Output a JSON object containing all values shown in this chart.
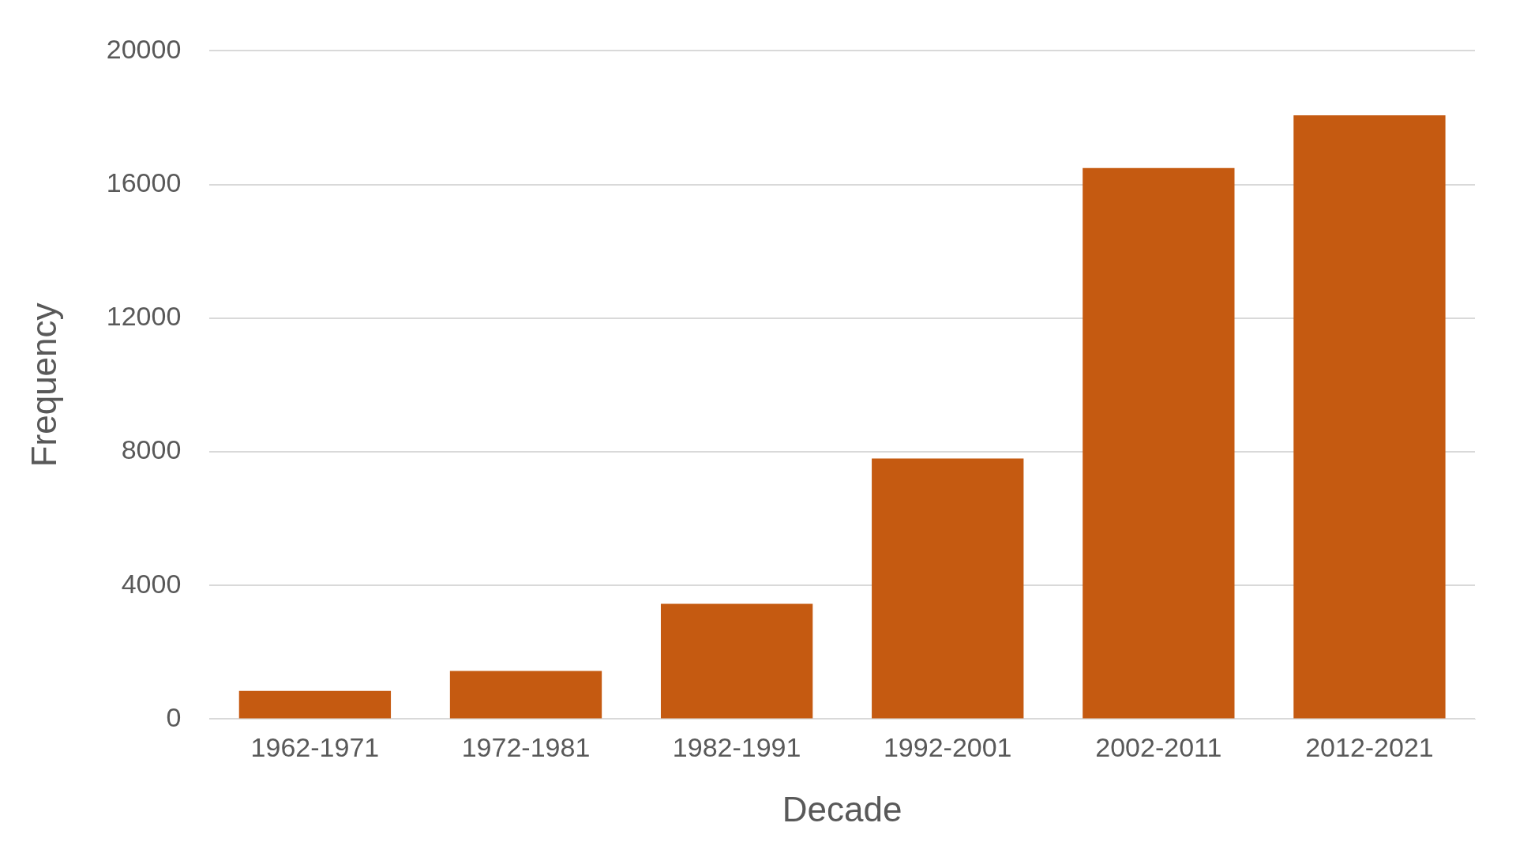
{
  "chart_data": {
    "type": "bar",
    "xlabel": "Decade",
    "ylabel": "Frequency",
    "categories": [
      "1962-1971",
      "1972-1981",
      "1982-1991",
      "1992-2001",
      "2002-2011",
      "2012-2021"
    ],
    "values": [
      840,
      1440,
      3450,
      7800,
      16490,
      18070
    ],
    "color": "#c55a11",
    "ylim": [
      0,
      20000
    ],
    "yticks": [
      0,
      4000,
      8000,
      12000,
      16000,
      20000
    ],
    "grid": "y",
    "legend": false
  }
}
